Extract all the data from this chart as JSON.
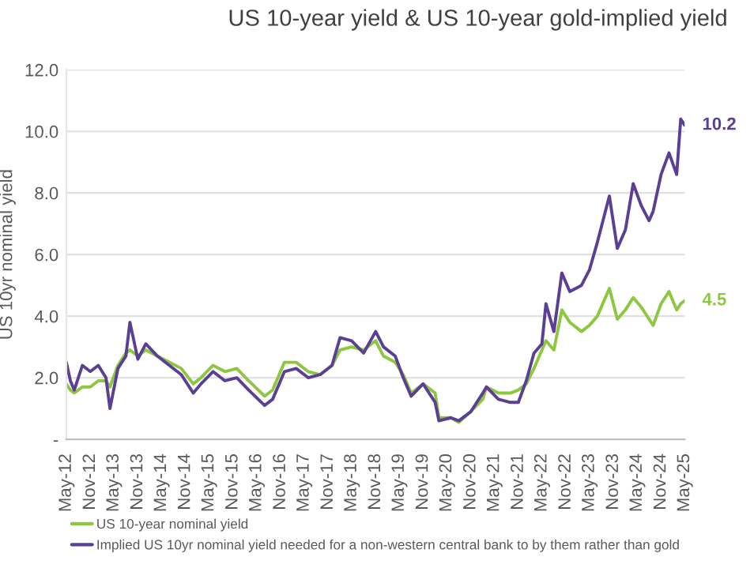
{
  "chart_data": {
    "type": "line",
    "title": "US 10-year yield & US 10-year gold-implied yield",
    "ylabel": "US 10yr nominal yield",
    "x": [
      "2012-05",
      "2012-06",
      "2012-07",
      "2012-09",
      "2012-11",
      "2013-01",
      "2013-03",
      "2013-04",
      "2013-06",
      "2013-08",
      "2013-09",
      "2013-11",
      "2014-01",
      "2014-04",
      "2014-07",
      "2014-10",
      "2015-01",
      "2015-03",
      "2015-06",
      "2015-09",
      "2015-12",
      "2016-03",
      "2016-07",
      "2016-09",
      "2016-12",
      "2017-03",
      "2017-06",
      "2017-09",
      "2017-12",
      "2018-02",
      "2018-05",
      "2018-08",
      "2018-11",
      "2019-01",
      "2019-04",
      "2019-06",
      "2019-08",
      "2019-11",
      "2020-02",
      "2020-03",
      "2020-06",
      "2020-08",
      "2020-11",
      "2021-02",
      "2021-03",
      "2021-06",
      "2021-09",
      "2021-11",
      "2022-01",
      "2022-03",
      "2022-05",
      "2022-06",
      "2022-08",
      "2022-10",
      "2022-12",
      "2023-03",
      "2023-05",
      "2023-07",
      "2023-10",
      "2023-12",
      "2024-02",
      "2024-04",
      "2024-06",
      "2024-08",
      "2024-09",
      "2024-11",
      "2025-01",
      "2025-03",
      "2025-04",
      "2025-05"
    ],
    "series": [
      {
        "name": "US 10-year nominal yield",
        "color": "#8dc63f",
        "values": [
          1.8,
          1.6,
          1.5,
          1.7,
          1.7,
          1.9,
          1.9,
          1.7,
          2.4,
          2.8,
          2.9,
          2.7,
          2.9,
          2.7,
          2.5,
          2.3,
          1.8,
          2.0,
          2.4,
          2.2,
          2.3,
          1.9,
          1.4,
          1.6,
          2.5,
          2.5,
          2.2,
          2.1,
          2.4,
          2.9,
          3.0,
          2.9,
          3.2,
          2.7,
          2.5,
          2.1,
          1.5,
          1.8,
          1.5,
          0.7,
          0.7,
          0.55,
          0.9,
          1.3,
          1.7,
          1.5,
          1.5,
          1.6,
          1.8,
          2.3,
          2.9,
          3.2,
          2.9,
          4.2,
          3.8,
          3.5,
          3.7,
          4.0,
          4.9,
          3.9,
          4.2,
          4.6,
          4.3,
          3.9,
          3.7,
          4.4,
          4.8,
          4.2,
          4.4,
          4.5
        ]
      },
      {
        "name": "Implied US 10yr nominal yield needed for a non-western central bank to by them rather than gold",
        "color": "#5b3f95",
        "values": [
          2.5,
          1.9,
          1.6,
          2.4,
          2.2,
          2.4,
          2.0,
          1.0,
          2.3,
          2.7,
          3.8,
          2.6,
          3.1,
          2.7,
          2.4,
          2.1,
          1.5,
          1.8,
          2.2,
          1.9,
          2.0,
          1.6,
          1.1,
          1.3,
          2.2,
          2.3,
          2.0,
          2.1,
          2.4,
          3.3,
          3.2,
          2.8,
          3.5,
          3.0,
          2.7,
          2.0,
          1.4,
          1.8,
          1.2,
          0.6,
          0.7,
          0.6,
          0.9,
          1.5,
          1.7,
          1.3,
          1.2,
          1.2,
          1.9,
          2.8,
          3.1,
          4.4,
          3.5,
          5.4,
          4.8,
          5.0,
          5.5,
          6.4,
          7.9,
          6.2,
          6.8,
          8.3,
          7.6,
          7.1,
          7.4,
          8.6,
          9.3,
          8.6,
          10.4,
          10.2
        ]
      }
    ],
    "annotations": [
      {
        "text": "10.2",
        "x": "2025-05",
        "y": 10.2
      },
      {
        "text": "4.5",
        "x": "2025-05",
        "y": 4.5
      }
    ],
    "xlim": [
      "2012-05",
      "2025-05"
    ],
    "xticks": [
      {
        "value": "2012-05",
        "label": "May-12"
      },
      {
        "value": "2012-11",
        "label": "Nov-12"
      },
      {
        "value": "2013-05",
        "label": "May-13"
      },
      {
        "value": "2013-11",
        "label": "Nov-13"
      },
      {
        "value": "2014-05",
        "label": "May-14"
      },
      {
        "value": "2014-11",
        "label": "Nov-14"
      },
      {
        "value": "2015-05",
        "label": "May-15"
      },
      {
        "value": "2015-11",
        "label": "Nov-15"
      },
      {
        "value": "2016-05",
        "label": "May-16"
      },
      {
        "value": "2016-11",
        "label": "Nov-16"
      },
      {
        "value": "2017-05",
        "label": "May-17"
      },
      {
        "value": "2017-11",
        "label": "Nov-17"
      },
      {
        "value": "2018-05",
        "label": "May-18"
      },
      {
        "value": "2018-11",
        "label": "Nov-18"
      },
      {
        "value": "2019-05",
        "label": "May-19"
      },
      {
        "value": "2019-11",
        "label": "Nov-19"
      },
      {
        "value": "2020-05",
        "label": "May-20"
      },
      {
        "value": "2020-11",
        "label": "Nov-20"
      },
      {
        "value": "2021-05",
        "label": "May-21"
      },
      {
        "value": "2021-11",
        "label": "Nov-21"
      },
      {
        "value": "2022-05",
        "label": "May-22"
      },
      {
        "value": "2022-11",
        "label": "Nov-22"
      },
      {
        "value": "2023-05",
        "label": "May-23"
      },
      {
        "value": "2023-11",
        "label": "Nov-23"
      },
      {
        "value": "2024-05",
        "label": "May-24"
      },
      {
        "value": "2024-11",
        "label": "Nov-24"
      },
      {
        "value": "2025-05",
        "label": "May-25"
      }
    ],
    "ylim": [
      0,
      12
    ],
    "yticks": [
      {
        "value": 0,
        "label": "-"
      },
      {
        "value": 2,
        "label": "2.0"
      },
      {
        "value": 4,
        "label": "4.0"
      },
      {
        "value": 6,
        "label": "6.0"
      },
      {
        "value": 8,
        "label": "8.0"
      },
      {
        "value": 10,
        "label": "10.0"
      },
      {
        "value": 12,
        "label": "12.0"
      }
    ],
    "grid": "y",
    "legend": "bottom",
    "line_style": "solid",
    "marker": "none"
  }
}
